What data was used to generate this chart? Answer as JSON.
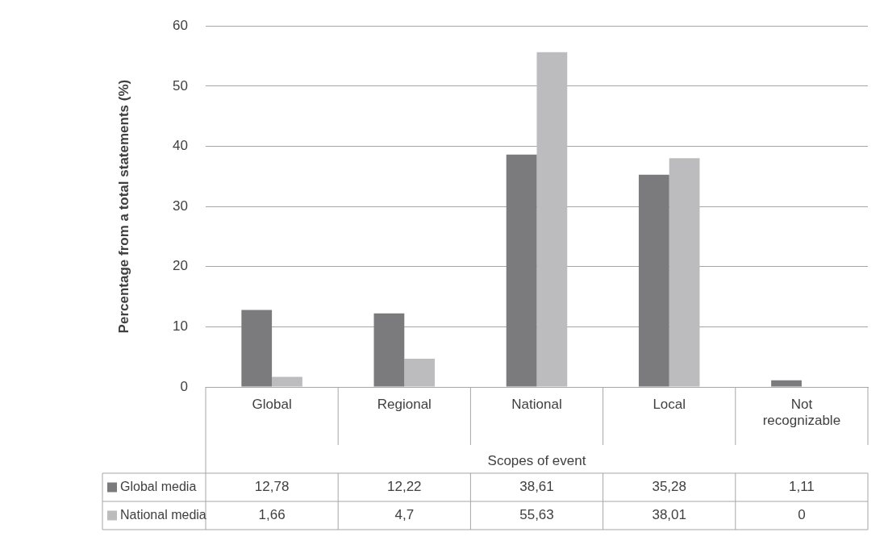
{
  "chart_data": {
    "type": "bar",
    "ylabel": "Percentage from a total statements (%)",
    "xlabel": "Scopes of event",
    "categories": [
      "Global",
      "Regional",
      "National",
      "Local",
      "Not recognizable"
    ],
    "series": [
      {
        "name": "Global media",
        "color": "#7b7b7d",
        "values": [
          12.78,
          12.22,
          38.61,
          35.28,
          1.11
        ],
        "value_labels": [
          "12,78",
          "12,22",
          "38,61",
          "35,28",
          "1,11"
        ]
      },
      {
        "name": "National media",
        "color": "#bcbcbe",
        "values": [
          1.66,
          4.7,
          55.63,
          38.01,
          0
        ],
        "value_labels": [
          "1,66",
          "4,7",
          "55,63",
          "38,01",
          "0"
        ]
      }
    ],
    "ylim": [
      0,
      60
    ],
    "yticks": [
      0,
      10,
      20,
      30,
      40,
      50,
      60
    ],
    "grid": "y",
    "legend": "bottom",
    "data_labels": true
  }
}
